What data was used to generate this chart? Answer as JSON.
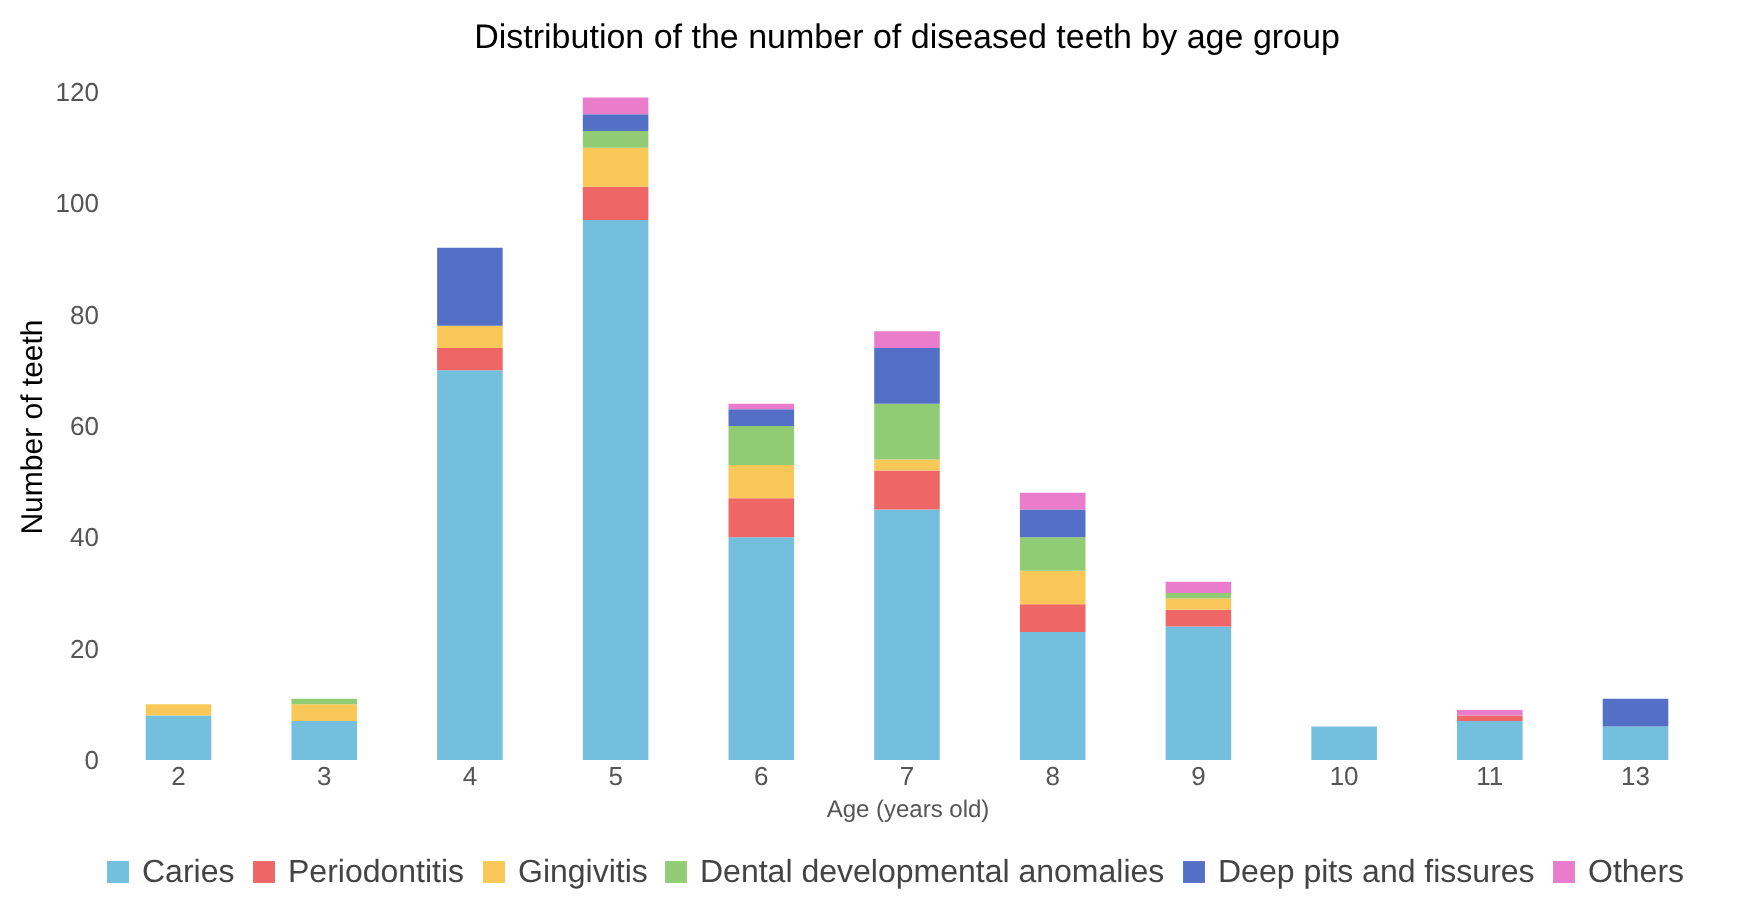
{
  "chart_data": {
    "type": "bar",
    "title": "Distribution of the number of diseased teeth by age group",
    "xlabel": "Age (years old)",
    "ylabel": "Number of teeth",
    "categories": [
      "2",
      "3",
      "4",
      "5",
      "6",
      "7",
      "8",
      "9",
      "10",
      "11",
      "13"
    ],
    "stacked": true,
    "ylim": [
      0,
      120
    ],
    "yticks": [
      0,
      20,
      40,
      60,
      80,
      100,
      120
    ],
    "grid": false,
    "legend": "bottom",
    "series": [
      {
        "name": "Caries",
        "color": "#74bfdd",
        "values": [
          8,
          7,
          70,
          97,
          40,
          45,
          23,
          24,
          6,
          7,
          6
        ]
      },
      {
        "name": "Periodontitis",
        "color": "#ee6666",
        "values": [
          0,
          0,
          4,
          6,
          7,
          7,
          5,
          3,
          0,
          1,
          0
        ]
      },
      {
        "name": "Gingivitis",
        "color": "#fac858",
        "values": [
          2,
          3,
          4,
          7,
          6,
          2,
          6,
          2,
          0,
          0,
          0
        ]
      },
      {
        "name": "Dental developmental anomalies",
        "color": "#91cc75",
        "values": [
          0,
          1,
          0,
          3,
          7,
          10,
          6,
          1,
          0,
          0,
          0
        ]
      },
      {
        "name": "Deep pits and fissures",
        "color": "#5470c6",
        "values": [
          0,
          0,
          14,
          3,
          3,
          10,
          5,
          0,
          0,
          0,
          5
        ]
      },
      {
        "name": "Others",
        "color": "#ea7ccc",
        "values": [
          0,
          0,
          0,
          3,
          1,
          3,
          3,
          2,
          0,
          1,
          0
        ]
      }
    ]
  }
}
